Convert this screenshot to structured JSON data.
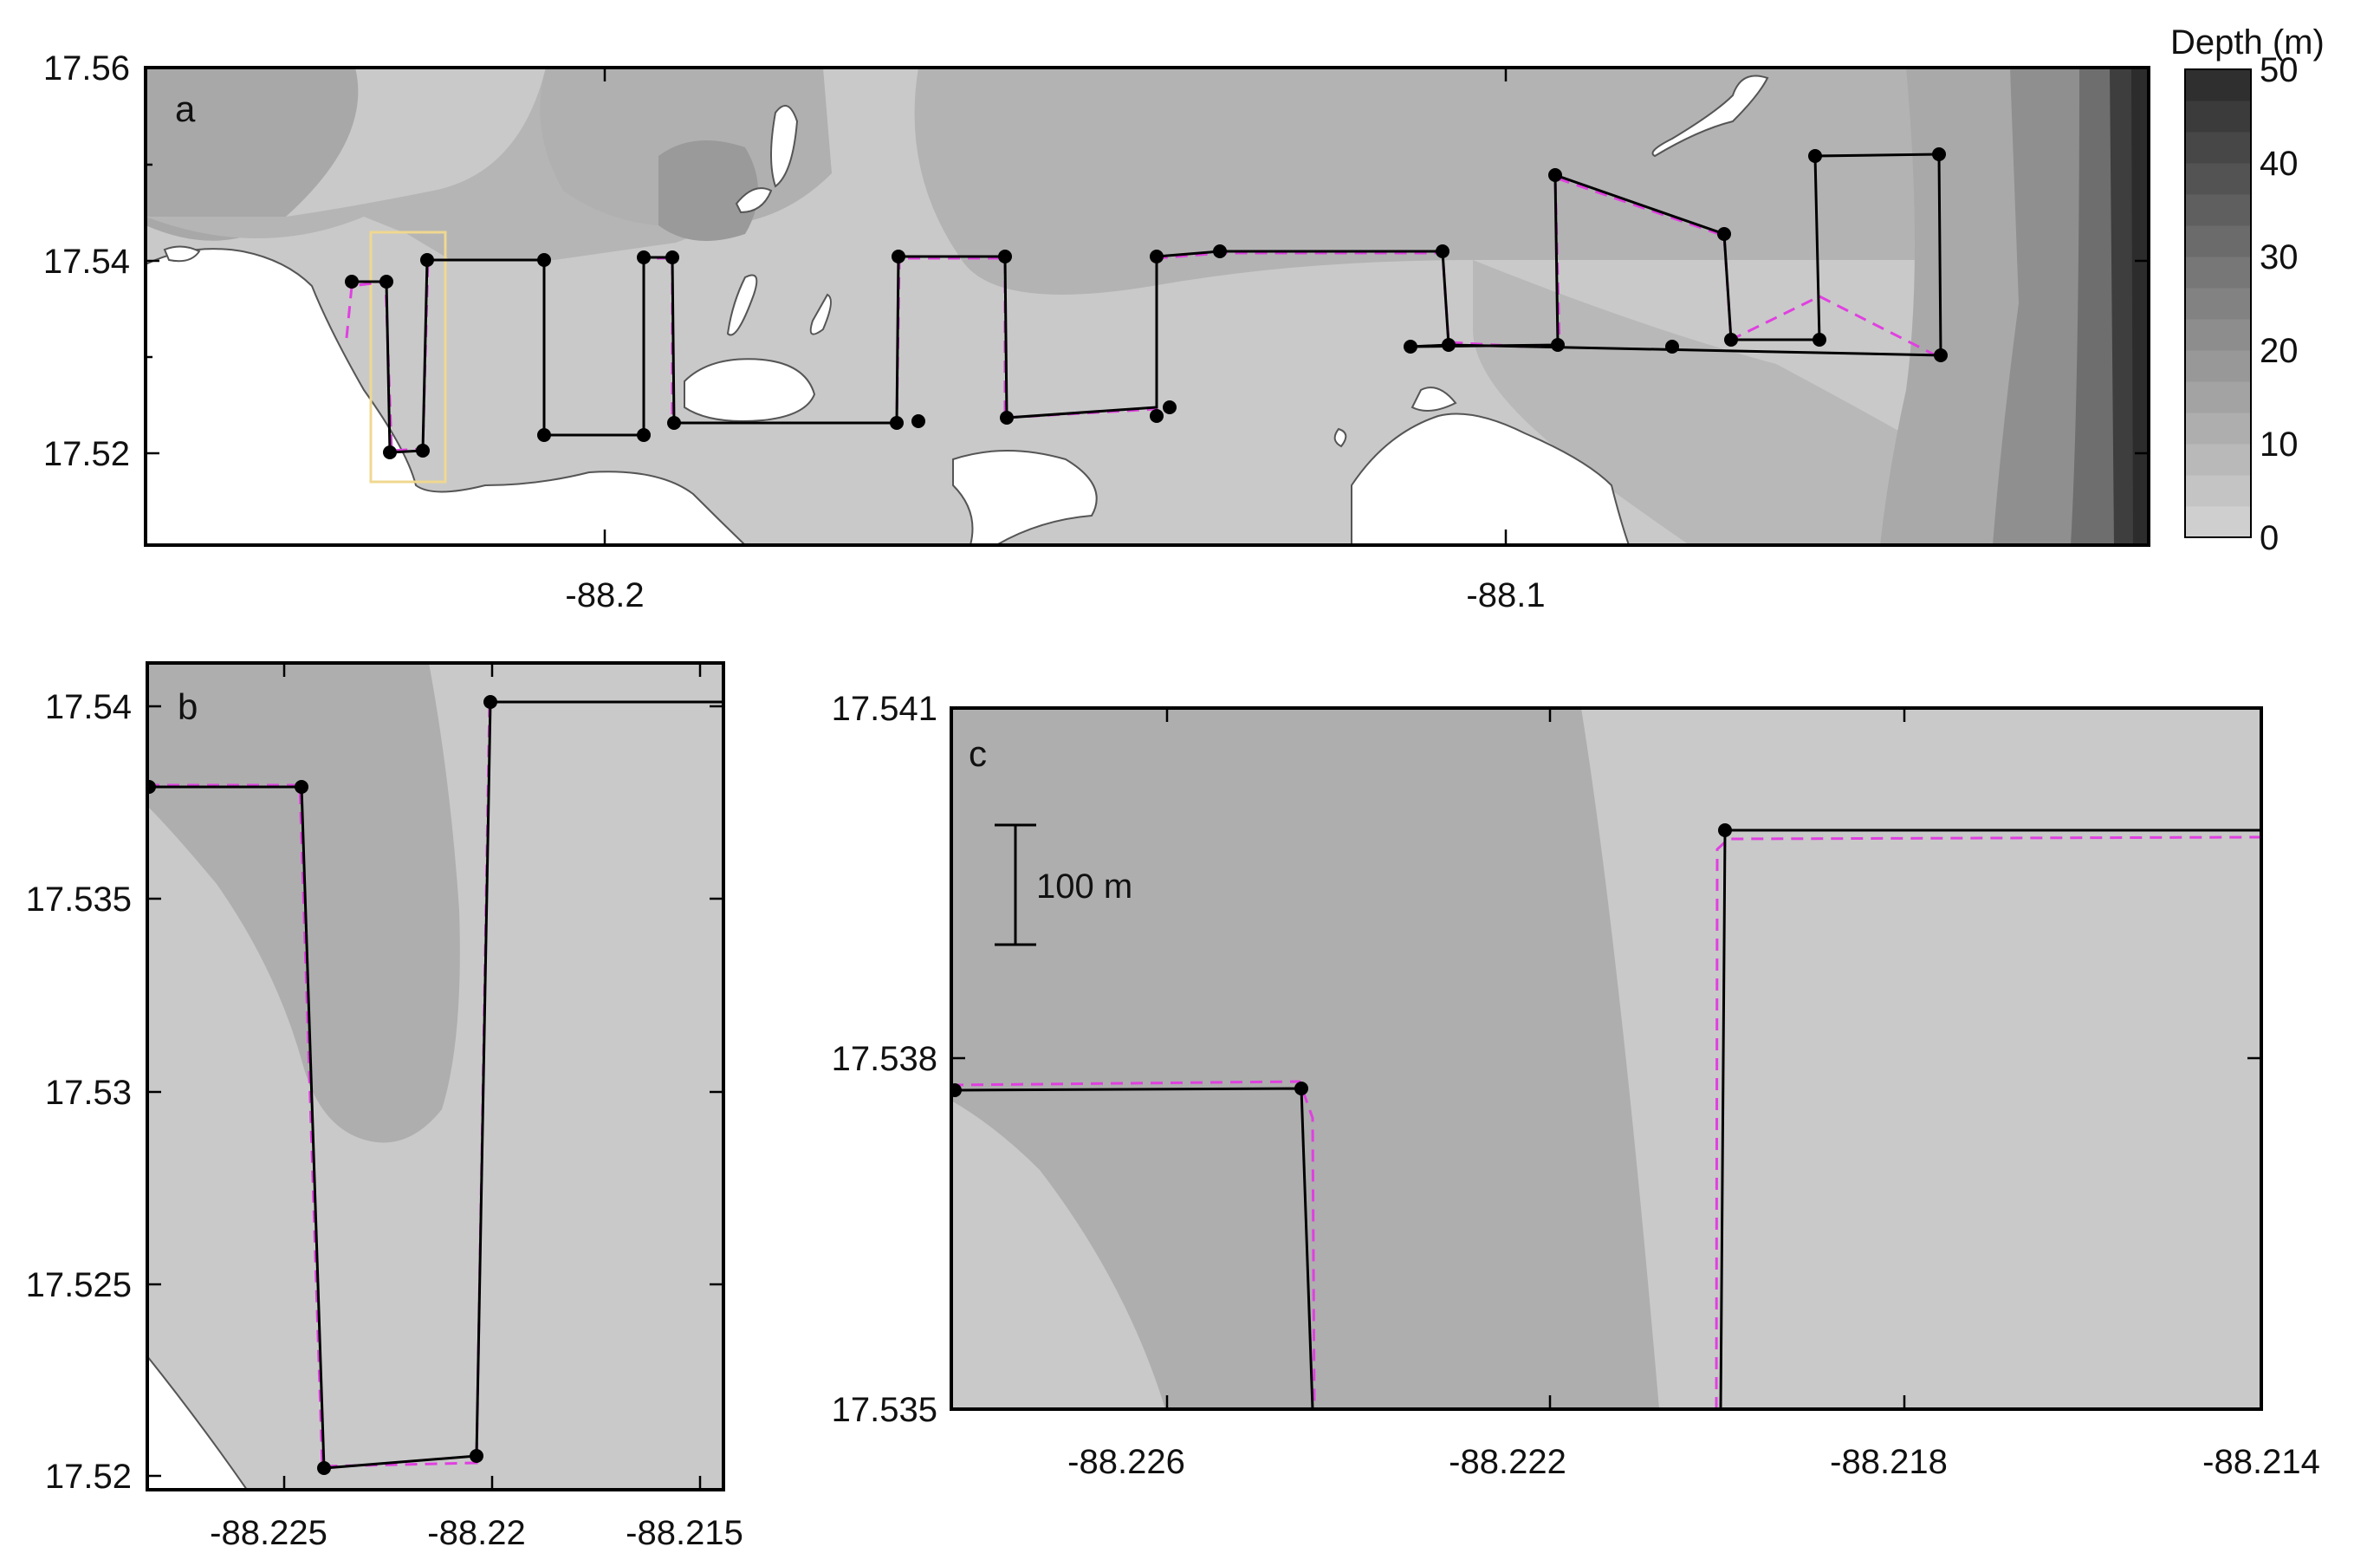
{
  "colorbar": {
    "title": "Depth (m)",
    "ticks": [
      "0",
      "10",
      "20",
      "30",
      "40",
      "50"
    ],
    "colors": [
      "#cfcfcf",
      "#c4c4c4",
      "#b9b9b9",
      "#aeaeae",
      "#a3a3a3",
      "#989898",
      "#8d8d8d",
      "#828282",
      "#777777",
      "#6b6b6b",
      "#5f5f5f",
      "#535353",
      "#474747",
      "#3b3b3b",
      "#2f2f2f"
    ]
  },
  "panels": {
    "a": {
      "label": "a",
      "yticks": [
        "17.56",
        "17.54",
        "17.52"
      ],
      "xticks": [
        "-88.2",
        "-88.1"
      ]
    },
    "b": {
      "label": "b",
      "yticks": [
        "17.54",
        "17.535",
        "17.53",
        "17.525",
        "17.52"
      ],
      "xticks": [
        "-88.225",
        "-88.22",
        "-88.215"
      ]
    },
    "c": {
      "label": "c",
      "yticks": [
        "17.541",
        "17.538",
        "17.535"
      ],
      "xticks": [
        "-88.226",
        "-88.222",
        "-88.218",
        "-88.214"
      ],
      "scalebar": "100 m"
    }
  },
  "styles": {
    "planned_track_color": "#000000",
    "actual_track_color": "#e040e0",
    "land_color": "#ffffff",
    "zoom_box_color": "#f0d890"
  }
}
